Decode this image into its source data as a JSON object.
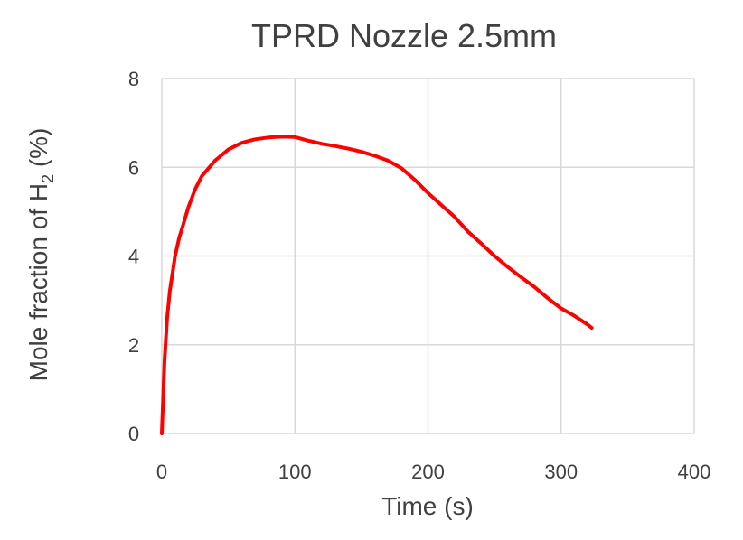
{
  "chart_data": {
    "type": "line",
    "title": "TPRD Nozzle 2.5mm",
    "xlabel": "Time (s)",
    "ylabel": {
      "prefix": "Mole fraction of H",
      "subscript": "2",
      "suffix": " (%)"
    },
    "xlim": [
      0,
      400
    ],
    "ylim": [
      0,
      8
    ],
    "xticks": [
      "0",
      "100",
      "200",
      "300",
      "400"
    ],
    "yticks": [
      "0",
      "2",
      "4",
      "6",
      "8"
    ],
    "grid": true,
    "series": [
      {
        "color": "#ff0000",
        "x": [
          0,
          1,
          2,
          4,
          6,
          8,
          10,
          13,
          16,
          20,
          25,
          30,
          40,
          50,
          60,
          70,
          80,
          90,
          100,
          110,
          120,
          130,
          140,
          150,
          160,
          170,
          180,
          190,
          200,
          210,
          220,
          230,
          240,
          250,
          260,
          270,
          280,
          290,
          300,
          310,
          320,
          323
        ],
        "y": [
          0,
          0.8,
          1.6,
          2.6,
          3.2,
          3.6,
          4.0,
          4.4,
          4.7,
          5.1,
          5.5,
          5.8,
          6.15,
          6.4,
          6.55,
          6.63,
          6.67,
          6.69,
          6.68,
          6.6,
          6.53,
          6.48,
          6.42,
          6.35,
          6.26,
          6.15,
          5.98,
          5.72,
          5.42,
          5.15,
          4.88,
          4.55,
          4.28,
          4.0,
          3.75,
          3.52,
          3.3,
          3.05,
          2.82,
          2.65,
          2.45,
          2.38
        ]
      }
    ]
  }
}
